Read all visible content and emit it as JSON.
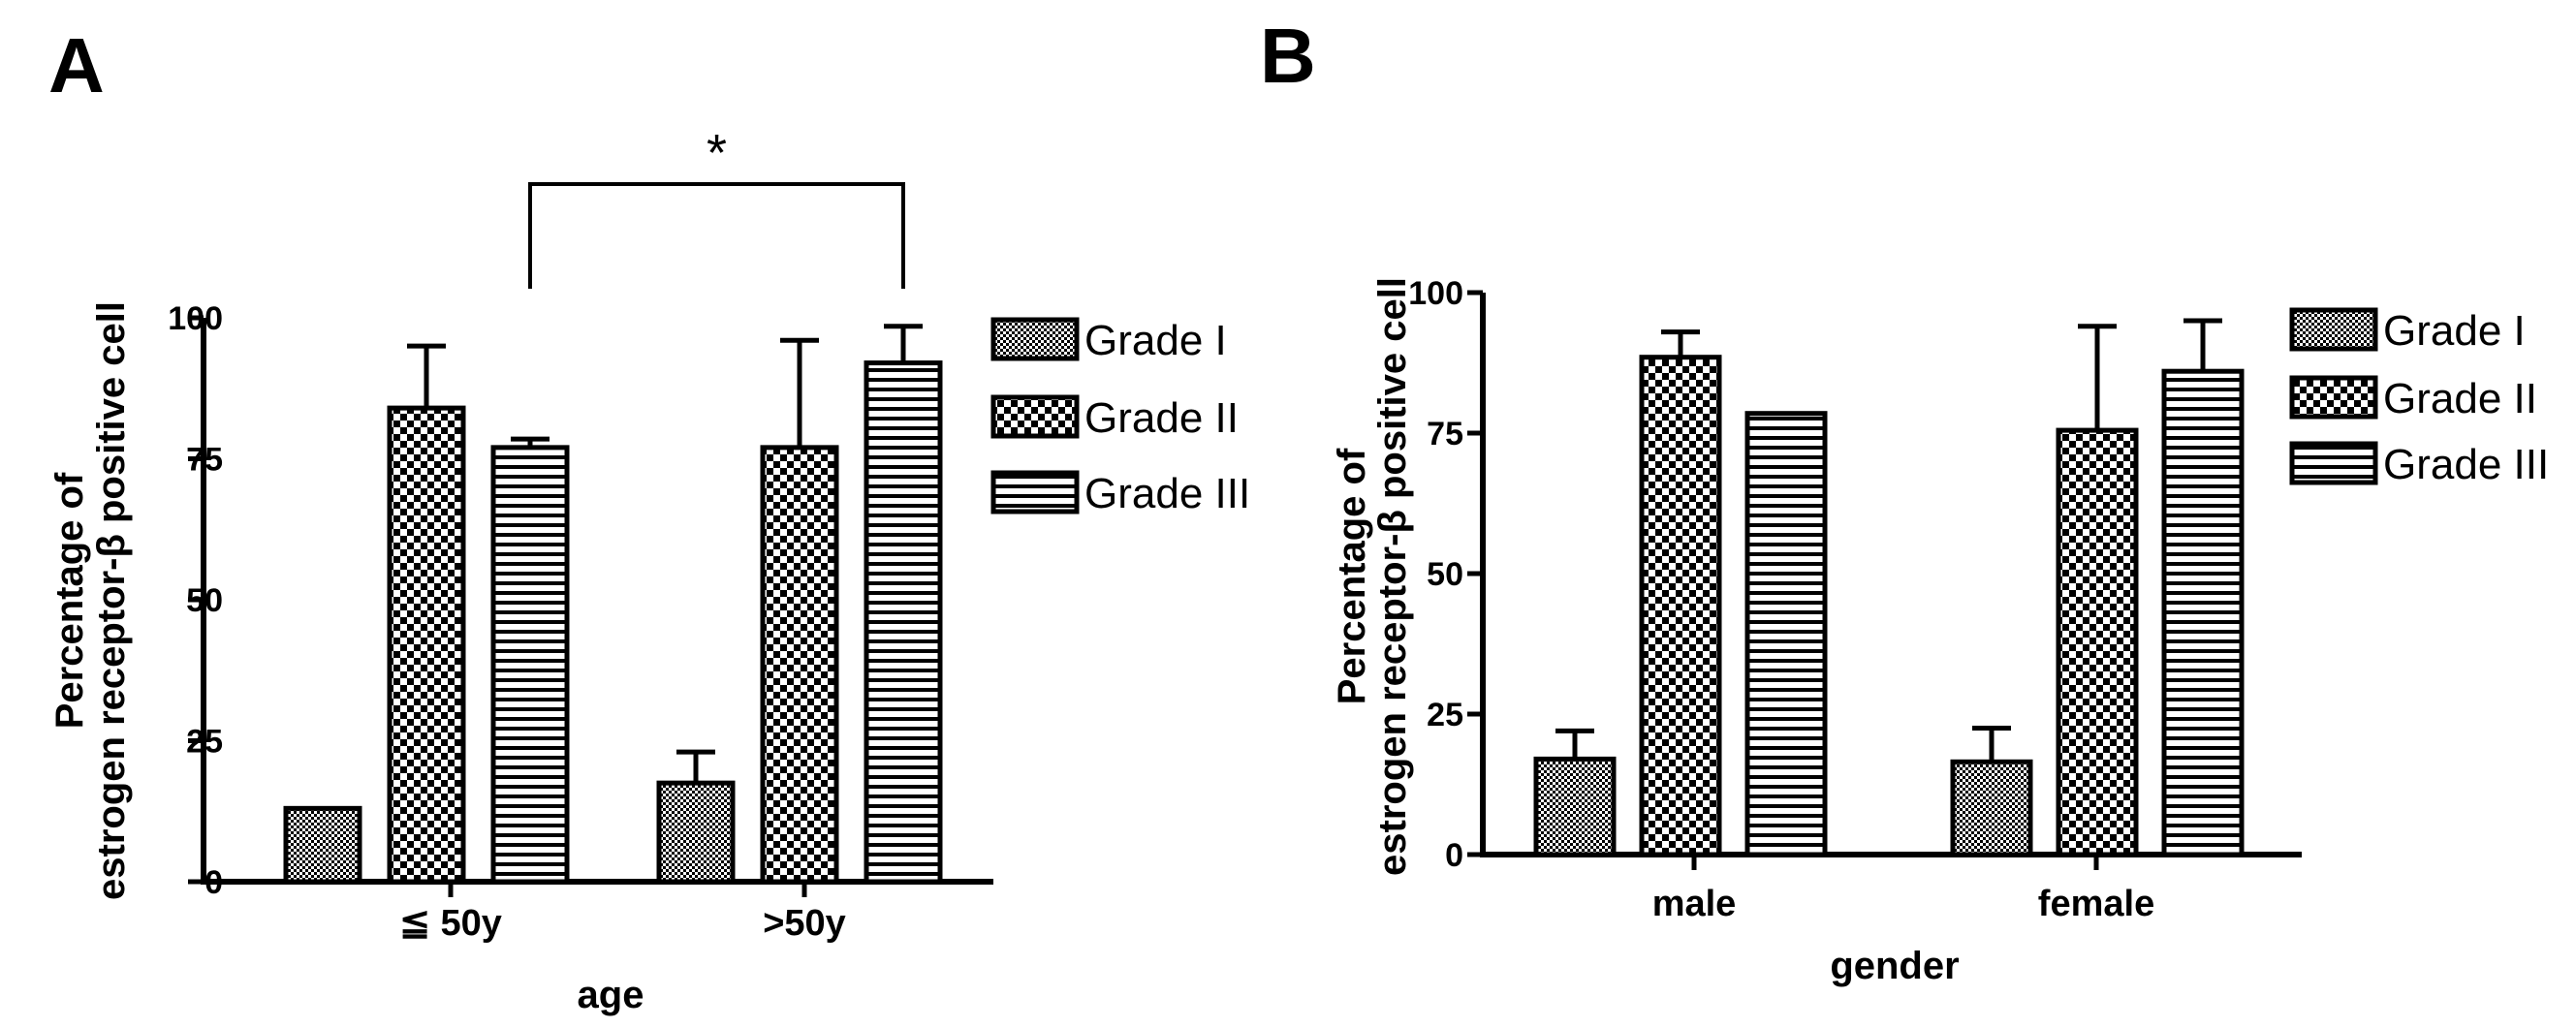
{
  "chart_data": [
    {
      "type": "bar",
      "panel": "A",
      "xlabel": "age",
      "ylabel": [
        "Percentage of",
        "estrogen receptor-β positive cell"
      ],
      "ylim": [
        0,
        100
      ],
      "yticks": [
        "0",
        "25",
        "50",
        "75",
        "100"
      ],
      "categories": [
        "≦ 50y",
        ">50y"
      ],
      "series": [
        {
          "name": "Grade I",
          "values": [
            13,
            17.5
          ],
          "errors": [
            0,
            5.5
          ]
        },
        {
          "name": "Grade II",
          "values": [
            84,
            77
          ],
          "errors": [
            11,
            19
          ]
        },
        {
          "name": "Grade III",
          "values": [
            77,
            92
          ],
          "errors": [
            1.5,
            6.5
          ]
        }
      ],
      "significance": {
        "label": "*",
        "from": [
          0,
          2
        ],
        "to": [
          1,
          2
        ]
      },
      "legend_position": "right"
    },
    {
      "type": "bar",
      "panel": "B",
      "xlabel": "gender",
      "ylabel": [
        "Percentage of",
        "estrogen receptor-β positive cell"
      ],
      "ylim": [
        0,
        100
      ],
      "yticks": [
        "0",
        "25",
        "50",
        "75",
        "100"
      ],
      "categories": [
        "male",
        "female"
      ],
      "series": [
        {
          "name": "Grade I",
          "values": [
            17,
            16.5
          ],
          "errors": [
            5,
            6
          ]
        },
        {
          "name": "Grade II",
          "values": [
            88.5,
            75.5
          ],
          "errors": [
            4.5,
            18.5
          ]
        },
        {
          "name": "Grade III",
          "values": [
            78.5,
            86
          ],
          "errors": [
            0,
            9
          ]
        }
      ],
      "legend_position": "right"
    }
  ]
}
